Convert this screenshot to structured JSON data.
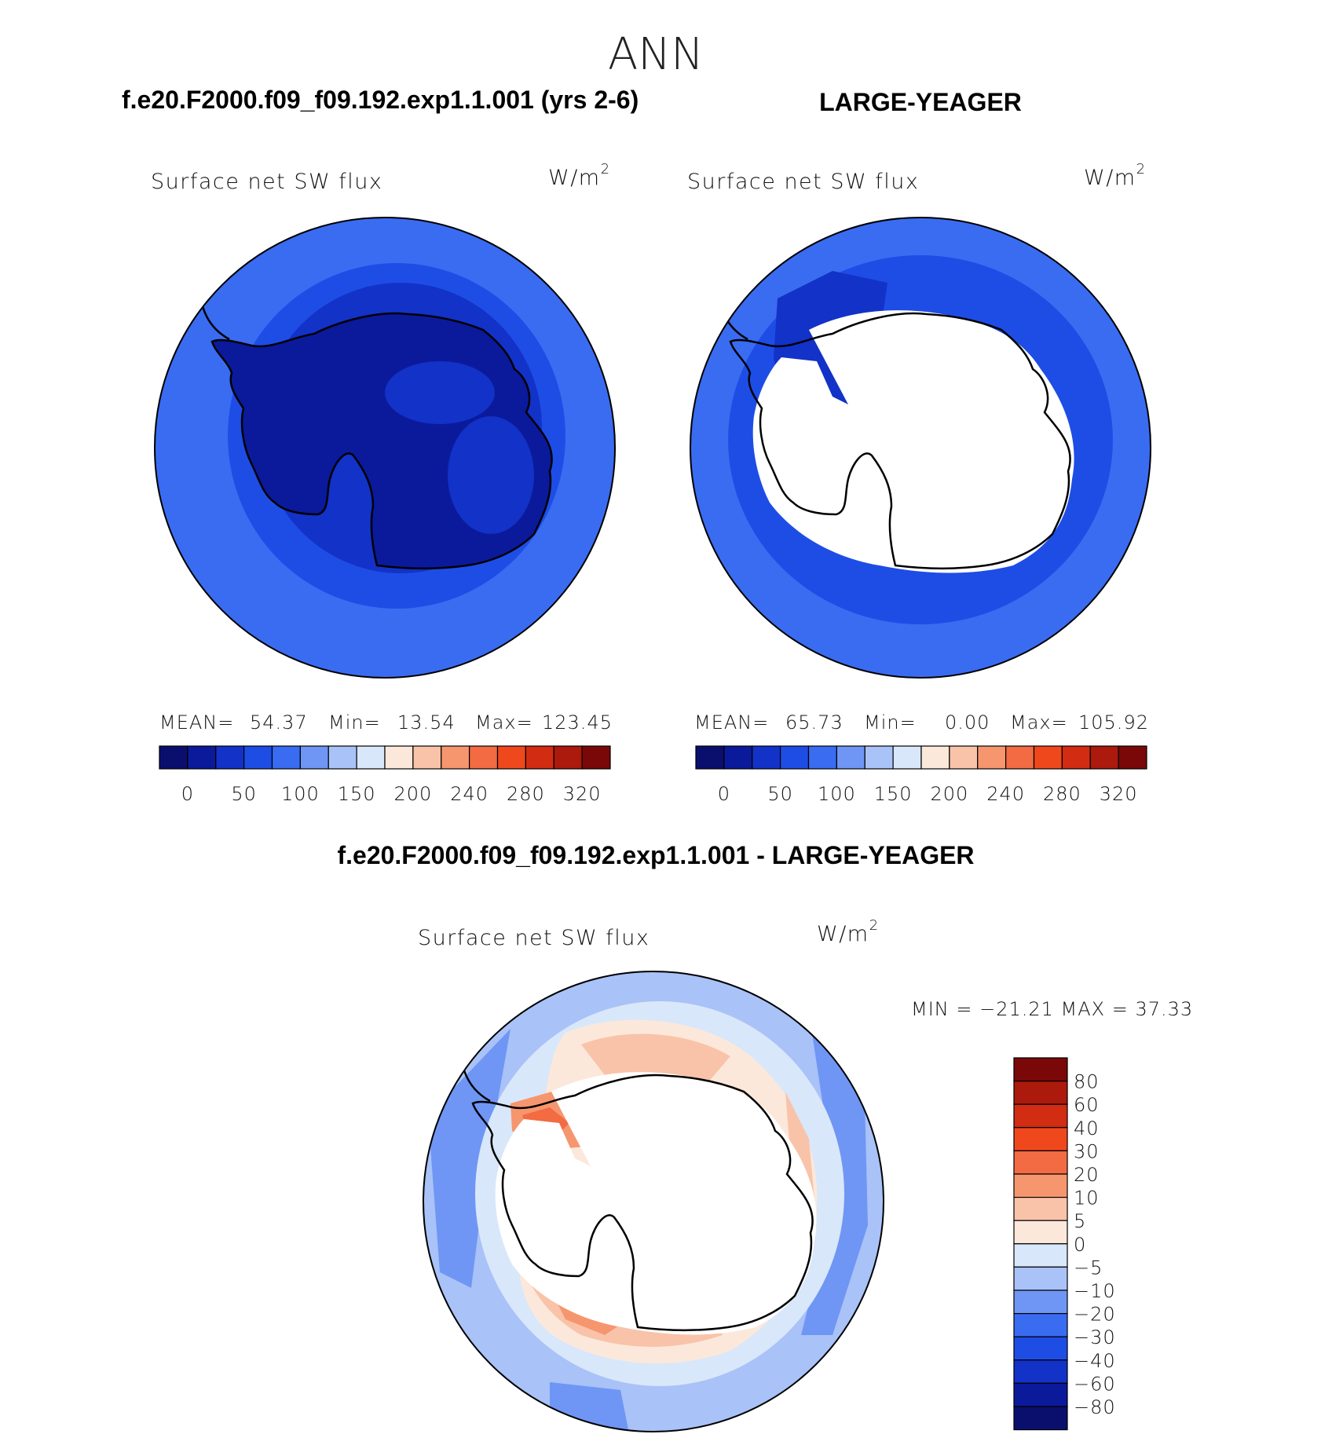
{
  "header": {
    "season": "ANN",
    "left_case": "f.e20.F2000.f09_f09.192.exp1.1.001 (yrs 2-6)",
    "right_case": "LARGE-YEAGER",
    "diff_case": "f.e20.F2000.f09_f09.192.exp1.1.001 - LARGE-YEAGER"
  },
  "panels": {
    "left": {
      "variable": "Surface net SW flux",
      "units": "W/m",
      "units_sup": "2",
      "stats": {
        "mean_label": "MEAN=",
        "mean": "54.37",
        "min_label": "Min=",
        "min": "13.54",
        "max_label": "Max=",
        "max": "123.45"
      }
    },
    "right": {
      "variable": "Surface net SW flux",
      "units": "W/m",
      "units_sup": "2",
      "stats": {
        "mean_label": "MEAN=",
        "mean": "65.73",
        "min_label": "Min=",
        "min": "0.00",
        "max_label": "Max=",
        "max": "105.92"
      }
    },
    "diff": {
      "variable": "Surface net SW flux",
      "units": "W/m",
      "units_sup": "2",
      "minmax": "MIN = −21.21 MAX =   37.33"
    }
  },
  "colorbars": {
    "abs": {
      "colors": [
        "#0a0f6e",
        "#0a1a9a",
        "#1232c8",
        "#1e4de6",
        "#3a6cf2",
        "#6f96f4",
        "#a9c2f7",
        "#d9e7fa",
        "#fce8da",
        "#f9c3aa",
        "#f6966e",
        "#f26b43",
        "#f0481d",
        "#d22c12",
        "#ab1a0c",
        "#7a0808"
      ],
      "tick_labels": [
        "0",
        "50",
        "100",
        "150",
        "200",
        "240",
        "280",
        "320"
      ]
    },
    "diff": {
      "colors": [
        "#0a0f6e",
        "#0a1a9a",
        "#1232c8",
        "#1e4de6",
        "#3a6cf2",
        "#6f96f4",
        "#a9c2f7",
        "#d9e7fa",
        "#fce8da",
        "#f9c3aa",
        "#f6966e",
        "#f26b43",
        "#f0481d",
        "#d22c12",
        "#ab1a0c",
        "#7a0808"
      ],
      "tick_labels": [
        "80",
        "60",
        "40",
        "30",
        "20",
        "10",
        "5",
        "0",
        "−5",
        "−10",
        "−20",
        "−30",
        "−40",
        "−60",
        "−80"
      ]
    }
  }
}
